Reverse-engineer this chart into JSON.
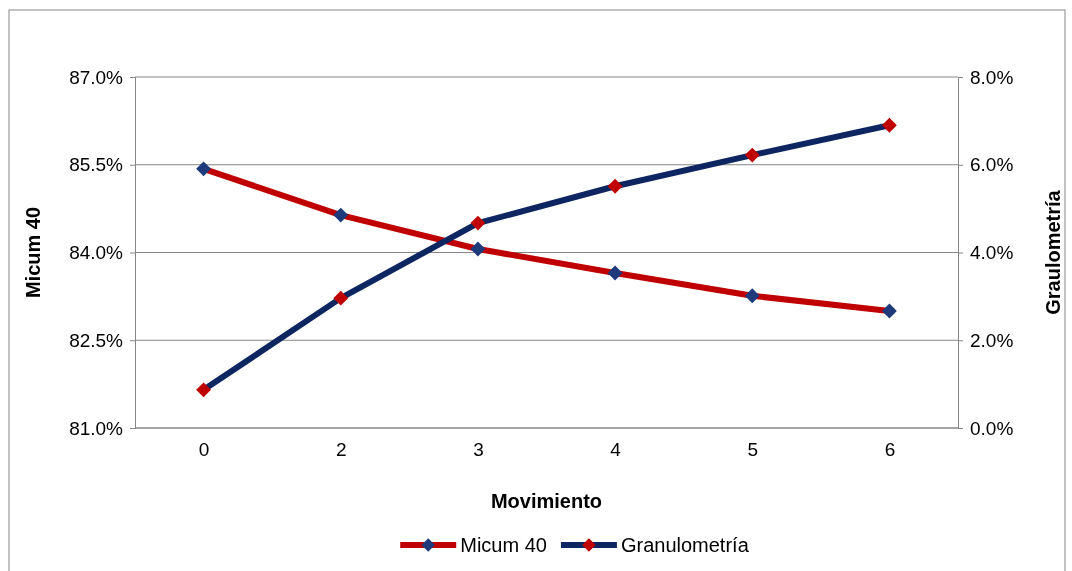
{
  "chart_data": {
    "type": "line",
    "xlabel": "Movimiento",
    "ylabel": "Micum 40",
    "y2label": "Graulometría",
    "categories": [
      "0",
      "2",
      "3",
      "4",
      "5",
      "6"
    ],
    "series": [
      {
        "name": "Micum 40",
        "color": "#c00000",
        "colors": [
          "#1f3a7a",
          "#1f3a7a",
          "#1f3a7a",
          "#1f3a7a",
          "#1f3a7a",
          "#1f3a7a"
        ],
        "values": [
          85.43,
          84.64,
          84.06,
          83.65,
          83.26,
          83.0
        ]
      },
      {
        "name": "Granulometría",
        "color": "#0d2560",
        "colors": [
          "#c00000",
          "#c00000",
          "#c00000",
          "#c00000",
          "#c00000",
          "#c00000"
        ],
        "axis": "y2",
        "values": [
          0.87,
          2.96,
          4.67,
          5.51,
          6.22,
          6.9
        ]
      }
    ],
    "ylim": [
      81,
      87
    ],
    "yticks": [
      {
        "value": 81,
        "label": "81.0%"
      },
      {
        "value": 82.5,
        "label": "82.5%"
      },
      {
        "value": 84,
        "label": "84.0%"
      },
      {
        "value": 85.5,
        "label": "85.5%"
      },
      {
        "value": 87,
        "label": "87.0%"
      }
    ],
    "y2lim": [
      0,
      8
    ],
    "y2ticks": [
      {
        "value": 0,
        "label": "0.0%"
      },
      {
        "value": 2,
        "label": "2.0%"
      },
      {
        "value": 4,
        "label": "4.0%"
      },
      {
        "value": 6,
        "label": "6.0%"
      },
      {
        "value": 8,
        "label": "8.0%"
      }
    ],
    "grid": "y",
    "legend": "bottom",
    "marker": "diamond",
    "line_style": "solid"
  }
}
